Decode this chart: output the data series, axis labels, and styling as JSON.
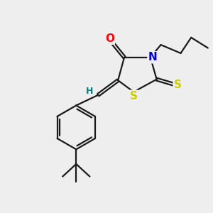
{
  "background_color": "#eeeeee",
  "bond_color": "#1a1a1a",
  "bond_width": 1.6,
  "atom_colors": {
    "O": "#ff0000",
    "N": "#0000cc",
    "S": "#cccc00",
    "H": "#008080",
    "C": "#1a1a1a"
  },
  "font_size_atom": 11
}
